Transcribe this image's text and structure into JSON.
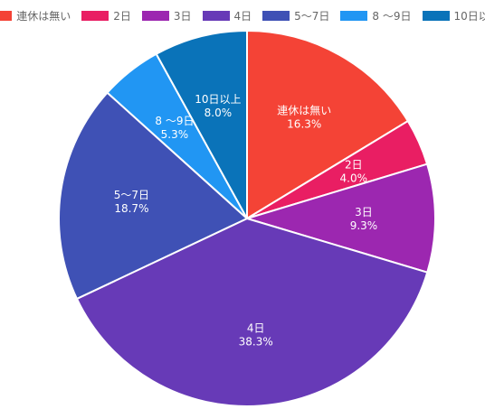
{
  "chart_data": {
    "type": "pie",
    "legend_position": "top",
    "slices": [
      {
        "label": "連休は無い",
        "value": 16.3,
        "display": "16.3%",
        "color": "#f44336"
      },
      {
        "label": "2日",
        "value": 4.0,
        "display": "4.0%",
        "color": "#e91e63"
      },
      {
        "label": "3日",
        "value": 9.3,
        "display": "9.3%",
        "color": "#9c27b0"
      },
      {
        "label": "4日",
        "value": 38.3,
        "display": "38.3%",
        "color": "#673ab7"
      },
      {
        "label": "5〜7日",
        "value": 18.7,
        "display": "18.7%",
        "color": "#3f51b5"
      },
      {
        "label": "8 〜9日",
        "value": 5.3,
        "display": "5.3%",
        "color": "#2196f3"
      },
      {
        "label": "10日以上",
        "value": 8.0,
        "display": "8.0%",
        "color": "#0a73b9"
      }
    ]
  }
}
